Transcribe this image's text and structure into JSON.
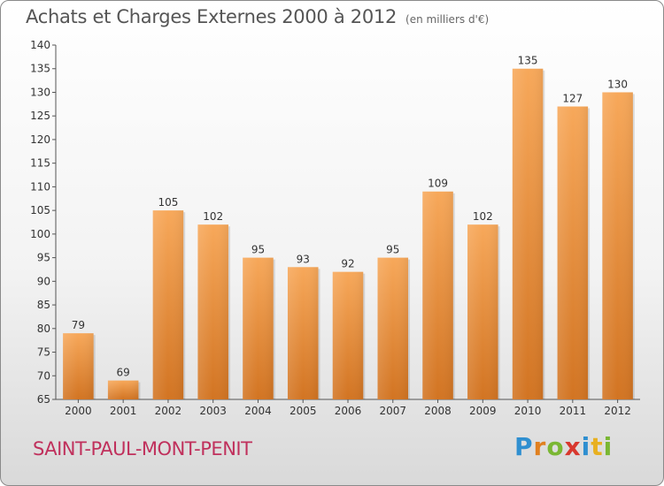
{
  "header": {
    "title": "Achats et Charges Externes 2000 à 2012",
    "unit": "(en milliers d'€)"
  },
  "footer": {
    "town": "SAINT-PAUL-MONT-PENIT",
    "logo_letters": [
      "P",
      "r",
      "o",
      "x",
      "i",
      "t",
      "i"
    ]
  },
  "colors": {
    "bar_light": "#f7a85a",
    "bar_dark": "#d27422",
    "town": "#c0305c"
  },
  "chart_data": {
    "type": "bar",
    "title": "Achats et Charges Externes 2000 à 2012",
    "subtitle": "(en milliers d'€)",
    "xlabel": "",
    "ylabel": "",
    "categories": [
      "2000",
      "2001",
      "2002",
      "2003",
      "2004",
      "2005",
      "2006",
      "2007",
      "2008",
      "2009",
      "2010",
      "2011",
      "2012"
    ],
    "values": [
      79,
      69,
      105,
      102,
      95,
      93,
      92,
      95,
      109,
      102,
      135,
      127,
      130
    ],
    "ylim": [
      65,
      140
    ],
    "yticks": [
      65,
      70,
      75,
      80,
      85,
      90,
      95,
      100,
      105,
      110,
      115,
      120,
      125,
      130,
      135,
      140
    ],
    "grid": false,
    "legend": "none"
  }
}
